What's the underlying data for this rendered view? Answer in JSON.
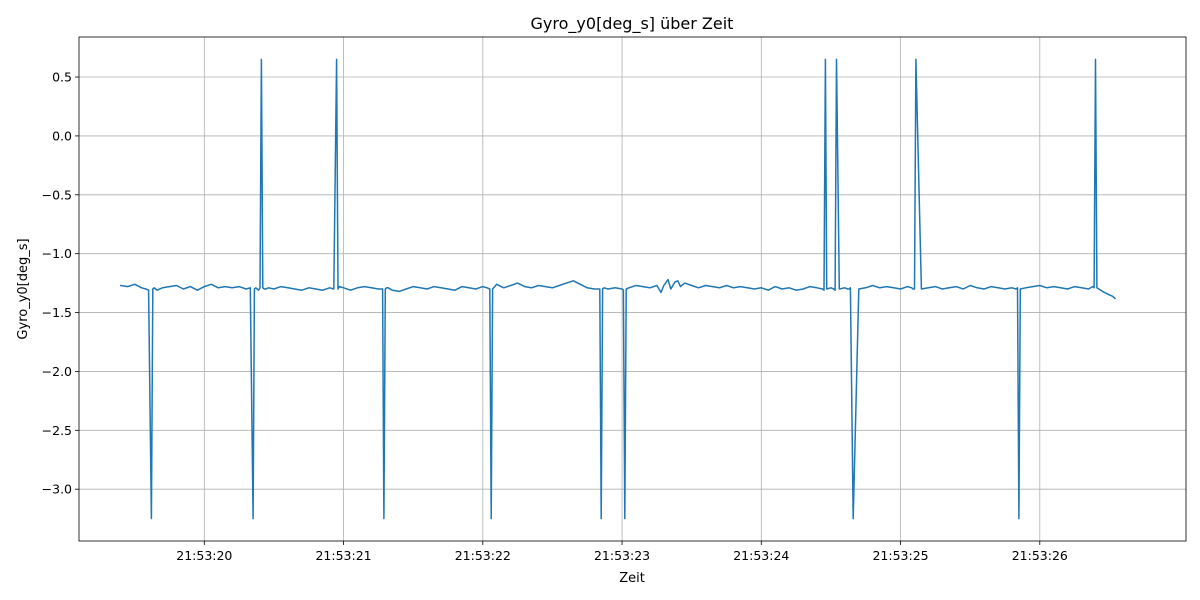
{
  "chart_data": {
    "type": "line",
    "title": "Gyro_y0[deg_s] über Zeit",
    "xlabel": "Zeit",
    "ylabel": "Gyro_y0[deg_s]",
    "grid": true,
    "x_tick_labels": [
      "21:53:20",
      "21:53:21",
      "21:53:22",
      "21:53:23",
      "21:53:24",
      "21:53:25",
      "21:53:26"
    ],
    "y_tick_labels": [
      "0.5",
      "0.0",
      "−0.5",
      "−1.0",
      "−1.5",
      "−2.0",
      "−2.5",
      "−3.0"
    ],
    "xlim_seconds": [
      19.1,
      27.05
    ],
    "ylim": [
      -3.44,
      0.84
    ],
    "line_color": "#1f77b4",
    "series": [
      {
        "x_seconds": [
          19.4,
          19.45,
          19.5,
          19.55,
          19.58,
          19.6,
          19.62,
          19.63,
          19.64,
          19.65,
          19.66,
          19.7,
          19.75,
          19.8,
          19.85,
          19.9,
          19.95,
          20.0,
          20.05,
          20.1,
          20.15,
          20.2,
          20.25,
          20.3,
          20.33,
          20.35,
          20.36,
          20.37,
          20.38,
          20.39,
          20.4,
          20.41,
          20.42,
          20.43,
          20.44,
          20.46,
          20.5,
          20.55,
          20.6,
          20.65,
          20.7,
          20.75,
          20.8,
          20.85,
          20.9,
          20.93,
          20.95,
          20.96,
          20.97,
          21.0,
          21.05,
          21.1,
          21.15,
          21.2,
          21.25,
          21.28,
          21.29,
          21.3,
          21.31,
          21.32,
          21.35,
          21.4,
          21.45,
          21.5,
          21.55,
          21.6,
          21.65,
          21.7,
          21.75,
          21.8,
          21.85,
          21.9,
          21.95,
          22.0,
          22.03,
          22.05,
          22.06,
          22.07,
          22.1,
          22.15,
          22.2,
          22.25,
          22.3,
          22.35,
          22.4,
          22.45,
          22.5,
          22.55,
          22.6,
          22.65,
          22.7,
          22.75,
          22.8,
          22.84,
          22.85,
          22.86,
          22.87,
          22.9,
          22.95,
          23.0,
          23.01,
          23.02,
          23.03,
          23.05,
          23.1,
          23.15,
          23.2,
          23.25,
          23.28,
          23.3,
          23.33,
          23.35,
          23.38,
          23.4,
          23.42,
          23.45,
          23.5,
          23.55,
          23.6,
          23.65,
          23.7,
          23.75,
          23.8,
          23.85,
          23.9,
          23.95,
          24.0,
          24.05,
          24.1,
          24.15,
          24.2,
          24.25,
          24.3,
          24.35,
          24.4,
          24.44,
          24.45,
          24.46,
          24.47,
          24.5,
          24.52,
          24.53,
          24.54,
          24.56,
          24.6,
          24.62,
          24.63,
          24.64,
          24.66,
          24.7,
          24.75,
          24.8,
          24.85,
          24.9,
          24.95,
          25.0,
          25.05,
          25.08,
          25.09,
          25.1,
          25.11,
          25.15,
          25.2,
          25.25,
          25.3,
          25.35,
          25.4,
          25.45,
          25.5,
          25.55,
          25.6,
          25.65,
          25.7,
          25.75,
          25.8,
          25.83,
          25.84,
          25.85,
          25.86,
          25.9,
          25.95,
          26.0,
          26.05,
          26.1,
          26.15,
          26.2,
          26.25,
          26.3,
          26.35,
          26.38,
          26.39,
          26.4,
          26.41,
          26.45,
          26.5,
          26.52,
          26.54
        ],
        "y": [
          -1.27,
          -1.28,
          -1.26,
          -1.29,
          -1.3,
          -1.31,
          -3.25,
          -1.3,
          -1.29,
          -1.3,
          -1.31,
          -1.29,
          -1.28,
          -1.27,
          -1.3,
          -1.28,
          -1.31,
          -1.28,
          -1.26,
          -1.29,
          -1.28,
          -1.29,
          -1.28,
          -1.3,
          -1.29,
          -3.25,
          -1.3,
          -1.29,
          -1.3,
          -1.31,
          -1.29,
          0.65,
          -1.29,
          -1.3,
          -1.3,
          -1.29,
          -1.3,
          -1.28,
          -1.29,
          -1.3,
          -1.31,
          -1.29,
          -1.3,
          -1.31,
          -1.29,
          -1.3,
          0.65,
          -1.3,
          -1.28,
          -1.29,
          -1.31,
          -1.29,
          -1.28,
          -1.29,
          -1.3,
          -1.3,
          -3.25,
          -1.3,
          -1.29,
          -1.29,
          -1.31,
          -1.32,
          -1.3,
          -1.28,
          -1.29,
          -1.3,
          -1.28,
          -1.29,
          -1.3,
          -1.31,
          -1.28,
          -1.29,
          -1.3,
          -1.28,
          -1.29,
          -1.3,
          -3.25,
          -1.3,
          -1.26,
          -1.29,
          -1.27,
          -1.25,
          -1.28,
          -1.29,
          -1.27,
          -1.28,
          -1.29,
          -1.27,
          -1.25,
          -1.23,
          -1.26,
          -1.29,
          -1.3,
          -1.3,
          -3.25,
          -1.3,
          -1.29,
          -1.3,
          -1.29,
          -1.3,
          -1.31,
          -3.25,
          -1.3,
          -1.29,
          -1.27,
          -1.28,
          -1.29,
          -1.27,
          -1.33,
          -1.27,
          -1.22,
          -1.3,
          -1.24,
          -1.23,
          -1.28,
          -1.25,
          -1.27,
          -1.29,
          -1.27,
          -1.28,
          -1.29,
          -1.27,
          -1.29,
          -1.28,
          -1.29,
          -1.3,
          -1.29,
          -1.31,
          -1.28,
          -1.3,
          -1.29,
          -1.31,
          -1.3,
          -1.28,
          -1.29,
          -1.3,
          -1.31,
          0.65,
          -1.3,
          -1.29,
          -1.3,
          -1.31,
          0.65,
          -1.3,
          -1.29,
          -1.3,
          -1.3,
          -1.29,
          -3.25,
          -1.3,
          -1.29,
          -1.27,
          -1.29,
          -1.28,
          -1.29,
          -1.3,
          -1.28,
          -1.29,
          -1.3,
          -1.3,
          0.65,
          -1.3,
          -1.29,
          -1.28,
          -1.3,
          -1.29,
          -1.28,
          -1.3,
          -1.27,
          -1.29,
          -1.3,
          -1.28,
          -1.29,
          -1.3,
          -1.29,
          -1.3,
          -1.29,
          -3.25,
          -1.3,
          -1.29,
          -1.28,
          -1.27,
          -1.29,
          -1.28,
          -1.29,
          -1.3,
          -1.28,
          -1.29,
          -1.3,
          -1.28,
          -1.29,
          0.65,
          -1.29,
          -1.32,
          -1.35,
          -1.36,
          -1.38
        ]
      }
    ]
  }
}
